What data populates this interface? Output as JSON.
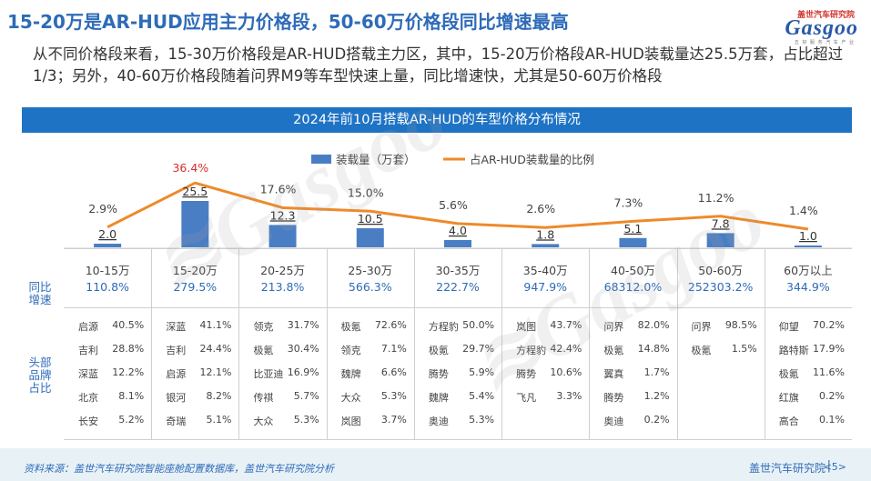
{
  "header": {
    "title": "15-20万是AR-HUD应用主力价格段，50-60万价格段同比增速最高",
    "logo_cn": "盖世汽车研究院",
    "logo_brand": "Gasgoo",
    "logo_tag": "五 好 服 务 汽 车 产 业"
  },
  "summary": "从不同价格段来看，15-30万价格段是AR-HUD搭载主力区，其中，15-20万价格段AR-HUD装载量达25.5万套，占比超过1/3；另外，40-60万价格段随着问界M9等车型快速上量，同比增速快，尤其是50-60万价格段",
  "banner": "2024年前10月搭载AR-HUD的车型价格分布情况",
  "chart_data": {
    "type": "bar",
    "categories": [
      "10-15万",
      "15-20万",
      "20-25万",
      "25-30万",
      "30-35万",
      "35-40万",
      "40-50万",
      "50-60万",
      "60万以上"
    ],
    "series": [
      {
        "name": "装载量（万套）",
        "type": "bar",
        "values": [
          2.0,
          25.5,
          12.3,
          10.5,
          4.0,
          1.8,
          5.1,
          7.8,
          1.0
        ],
        "labels": [
          "2.0",
          "25.5",
          "12.3",
          "10.5",
          "4.0",
          "1.8",
          "5.1",
          "7.8",
          "1.0"
        ]
      },
      {
        "name": "占AR-HUD装载量的比例",
        "type": "line",
        "values": [
          2.9,
          36.4,
          17.6,
          15.0,
          5.6,
          2.6,
          7.3,
          11.2,
          1.4
        ],
        "labels": [
          "2.9%",
          "36.4%",
          "17.6%",
          "15.0%",
          "5.6%",
          "2.6%",
          "7.3%",
          "11.2%",
          "1.4%"
        ]
      }
    ],
    "highlight_label_index": 1,
    "colors": {
      "bar": "#4a7ec4",
      "line": "#ee8a2a",
      "highlight": "#d2302b"
    }
  },
  "table": {
    "growth_header": [
      "同比",
      "增速"
    ],
    "brand_header": [
      "头部",
      "品牌",
      "占比"
    ],
    "growth": [
      "110.8%",
      "279.5%",
      "213.8%",
      "566.3%",
      "222.7%",
      "947.9%",
      "68312.0%",
      "252303.2%",
      "344.9%"
    ],
    "brands": [
      [
        [
          "启源",
          "40.5%"
        ],
        [
          "吉利",
          "28.8%"
        ],
        [
          "深蓝",
          "12.2%"
        ],
        [
          "北京",
          "8.1%"
        ],
        [
          "长安",
          "5.2%"
        ]
      ],
      [
        [
          "深蓝",
          "41.1%"
        ],
        [
          "吉利",
          "24.4%"
        ],
        [
          "启源",
          "12.1%"
        ],
        [
          "银河",
          "8.2%"
        ],
        [
          "奇瑞",
          "5.1%"
        ]
      ],
      [
        [
          "领克",
          "31.7%"
        ],
        [
          "极氪",
          "30.4%"
        ],
        [
          "比亚迪",
          "16.9%"
        ],
        [
          "传祺",
          "5.7%"
        ],
        [
          "大众",
          "5.3%"
        ]
      ],
      [
        [
          "极氪",
          "72.6%"
        ],
        [
          "领克",
          "7.1%"
        ],
        [
          "魏牌",
          "6.6%"
        ],
        [
          "大众",
          "5.3%"
        ],
        [
          "岚图",
          "3.7%"
        ]
      ],
      [
        [
          "方程豹",
          "50.0%"
        ],
        [
          "极氪",
          "29.7%"
        ],
        [
          "腾势",
          "5.9%"
        ],
        [
          "魏牌",
          "5.4%"
        ],
        [
          "奥迪",
          "5.3%"
        ]
      ],
      [
        [
          "岚图",
          "43.7%"
        ],
        [
          "方程豹",
          "42.4%"
        ],
        [
          "腾势",
          "10.6%"
        ],
        [
          "飞凡",
          "3.3%"
        ]
      ],
      [
        [
          "问界",
          "82.0%"
        ],
        [
          "极氪",
          "14.8%"
        ],
        [
          "翼真",
          "1.7%"
        ],
        [
          "腾势",
          "1.2%"
        ],
        [
          "奥迪",
          "0.2%"
        ]
      ],
      [
        [
          "问界",
          "98.5%"
        ],
        [
          "极氪",
          "1.5%"
        ]
      ],
      [
        [
          "仰望",
          "70.2%"
        ],
        [
          "路特斯",
          "17.9%"
        ],
        [
          "极氪",
          "11.6%"
        ],
        [
          "红旗",
          "0.2%"
        ],
        [
          "高合",
          "0.1%"
        ]
      ]
    ]
  },
  "footer": {
    "source": "资料来源：盖世汽车研究院智能座舱配置数据库，盖世汽车研究院分析",
    "org": "盖世汽车研究院",
    "page": "<5>"
  }
}
